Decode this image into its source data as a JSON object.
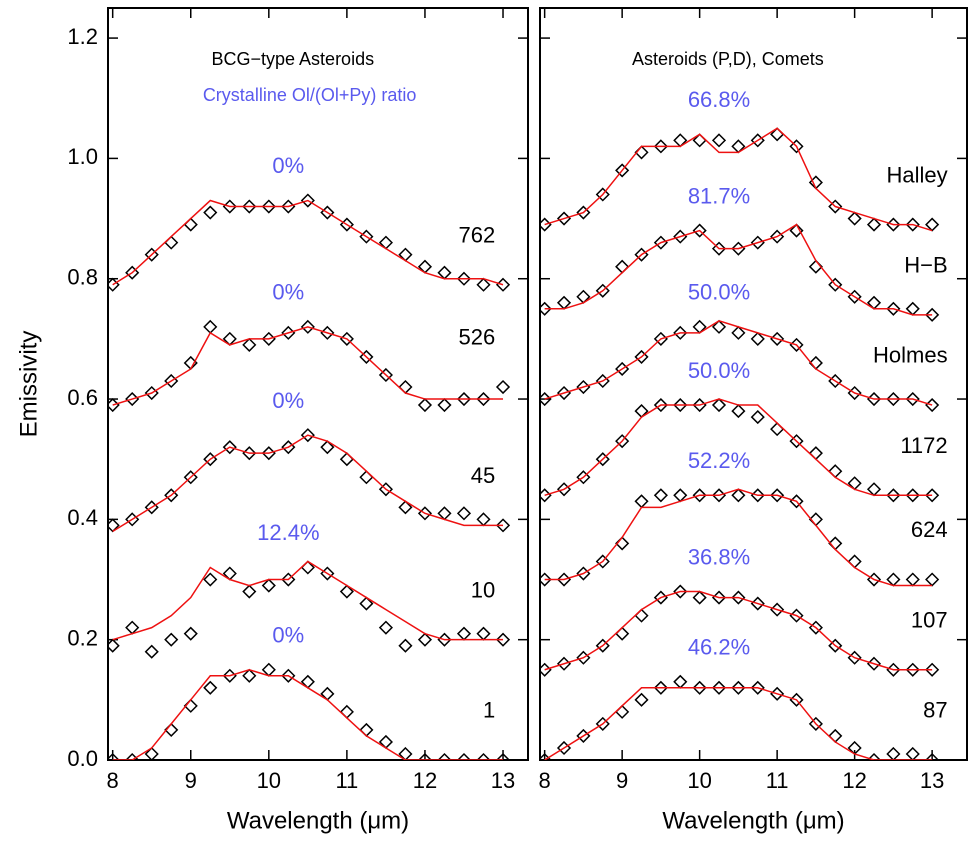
{
  "chart_data": [
    {
      "type": "spectra",
      "title": "BCG−type Asteroids",
      "subtitle": "Crystalline Ol/(Ol+Py) ratio",
      "x_label": "Wavelength (μm)",
      "y_label": "Emissivity",
      "xlim": [
        7.94,
        13.32
      ],
      "ylim": [
        0,
        1.25
      ],
      "xticks": [
        8,
        9,
        10,
        11,
        12,
        13
      ],
      "yticks": [
        {
          "value": 0,
          "label": "0.0"
        },
        {
          "value": 0.2,
          "label": "0.2"
        },
        {
          "value": 0.4,
          "label": "0.4"
        },
        {
          "value": 0.6,
          "label": "0.6"
        },
        {
          "value": 0.8,
          "label": "0.8"
        },
        {
          "value": 1,
          "label": "1.0"
        },
        {
          "value": 1.2,
          "label": "1.2"
        }
      ],
      "show_ytick_labels": true,
      "marker_color": "#000000",
      "model_color": "#ee1111",
      "label_color": "#5a5aee",
      "x": [
        8,
        8.25,
        8.5,
        8.75,
        9,
        9.25,
        9.5,
        9.75,
        10,
        10.25,
        10.5,
        10.75,
        11,
        11.25,
        11.5,
        11.75,
        12,
        12.25,
        12.5,
        12.75,
        13
      ],
      "series": [
        {
          "name": "762",
          "ratio": "0%",
          "observed": [
            0.79,
            0.81,
            0.84,
            0.86,
            0.89,
            0.91,
            0.92,
            0.92,
            0.92,
            0.92,
            0.93,
            0.91,
            0.89,
            0.87,
            0.86,
            0.84,
            0.82,
            0.81,
            0.8,
            0.79,
            0.79
          ],
          "model": [
            0.79,
            0.81,
            0.84,
            0.87,
            0.9,
            0.93,
            0.92,
            0.92,
            0.92,
            0.92,
            0.93,
            0.91,
            0.89,
            0.87,
            0.85,
            0.83,
            0.81,
            0.8,
            0.8,
            0.8,
            0.79
          ]
        },
        {
          "name": "526",
          "ratio": "0%",
          "observed": [
            0.59,
            0.6,
            0.61,
            0.63,
            0.66,
            0.72,
            0.7,
            0.69,
            0.7,
            0.71,
            0.72,
            0.71,
            0.7,
            0.67,
            0.64,
            0.62,
            0.59,
            0.59,
            0.6,
            0.6,
            0.62
          ],
          "model": [
            0.59,
            0.6,
            0.61,
            0.63,
            0.65,
            0.71,
            0.69,
            0.7,
            0.7,
            0.71,
            0.72,
            0.71,
            0.7,
            0.67,
            0.64,
            0.61,
            0.6,
            0.6,
            0.6,
            0.6,
            0.6
          ]
        },
        {
          "name": "45",
          "ratio": "0%",
          "observed": [
            0.39,
            0.4,
            0.42,
            0.44,
            0.47,
            0.5,
            0.52,
            0.51,
            0.51,
            0.52,
            0.54,
            0.52,
            0.5,
            0.47,
            0.45,
            0.42,
            0.41,
            0.41,
            0.41,
            0.4,
            0.39
          ],
          "model": [
            0.38,
            0.4,
            0.42,
            0.44,
            0.47,
            0.5,
            0.52,
            0.51,
            0.51,
            0.52,
            0.54,
            0.53,
            0.51,
            0.48,
            0.45,
            0.43,
            0.41,
            0.4,
            0.39,
            0.39,
            0.39
          ]
        },
        {
          "name": "10",
          "ratio": "12.4%",
          "observed": [
            0.19,
            0.22,
            0.18,
            0.2,
            0.21,
            0.3,
            0.31,
            0.28,
            0.29,
            0.3,
            0.32,
            0.31,
            0.28,
            0.26,
            0.22,
            0.19,
            0.2,
            0.2,
            0.21,
            0.21,
            0.2
          ],
          "model": [
            0.2,
            0.21,
            0.22,
            0.24,
            0.27,
            0.32,
            0.3,
            0.29,
            0.3,
            0.3,
            0.33,
            0.31,
            0.29,
            0.27,
            0.25,
            0.23,
            0.21,
            0.2,
            0.2,
            0.2,
            0.2
          ]
        },
        {
          "name": "1",
          "ratio": "0%",
          "observed": [
            0,
            0,
            0.01,
            0.05,
            0.09,
            0.12,
            0.14,
            0.14,
            0.15,
            0.14,
            0.13,
            0.11,
            0.08,
            0.05,
            0.03,
            0.01,
            0,
            0,
            0,
            0,
            0
          ],
          "model": [
            0,
            0,
            0.02,
            0.06,
            0.1,
            0.14,
            0.14,
            0.15,
            0.14,
            0.14,
            0.12,
            0.1,
            0.07,
            0.04,
            0.02,
            0,
            0,
            0,
            0,
            0,
            0
          ]
        }
      ]
    },
    {
      "type": "spectra",
      "title": "Asteroids (P,D), Comets",
      "x_label": "Wavelength (μm)",
      "xlim": [
        7.94,
        13.45
      ],
      "ylim": [
        0,
        1.25
      ],
      "xticks": [
        8,
        9,
        10,
        11,
        12,
        13
      ],
      "yticks": [
        0,
        0.2,
        0.4,
        0.6,
        0.8,
        1,
        1.2
      ],
      "show_ytick_labels": false,
      "marker_color": "#000000",
      "model_color": "#ee1111",
      "label_color": "#5a5aee",
      "x": [
        8,
        8.25,
        8.5,
        8.75,
        9,
        9.25,
        9.5,
        9.75,
        10,
        10.25,
        10.5,
        10.75,
        11,
        11.25,
        11.5,
        11.75,
        12,
        12.25,
        12.5,
        12.75,
        13
      ],
      "series": [
        {
          "name": "Halley",
          "ratio": "66.8%",
          "observed": [
            0.89,
            0.9,
            0.91,
            0.94,
            0.98,
            1.01,
            1.02,
            1.03,
            1.03,
            1.03,
            1.02,
            1.03,
            1.04,
            1.02,
            0.96,
            0.92,
            0.9,
            0.89,
            0.89,
            0.89,
            0.89
          ],
          "model": [
            0.89,
            0.9,
            0.91,
            0.94,
            0.98,
            1.02,
            1.02,
            1.02,
            1.04,
            1.01,
            1.01,
            1.03,
            1.05,
            1.02,
            0.95,
            0.92,
            0.91,
            0.9,
            0.89,
            0.89,
            0.88
          ]
        },
        {
          "name": "H−B",
          "ratio": "81.7%",
          "observed": [
            0.75,
            0.76,
            0.77,
            0.78,
            0.82,
            0.84,
            0.86,
            0.87,
            0.88,
            0.85,
            0.85,
            0.86,
            0.87,
            0.88,
            0.82,
            0.79,
            0.77,
            0.76,
            0.75,
            0.75,
            0.74
          ],
          "model": [
            0.75,
            0.75,
            0.76,
            0.78,
            0.81,
            0.84,
            0.86,
            0.87,
            0.88,
            0.85,
            0.85,
            0.86,
            0.87,
            0.89,
            0.83,
            0.79,
            0.77,
            0.75,
            0.75,
            0.74,
            0.74
          ]
        },
        {
          "name": "Holmes",
          "ratio": "50.0%",
          "observed": [
            0.6,
            0.61,
            0.62,
            0.63,
            0.65,
            0.67,
            0.7,
            0.71,
            0.72,
            0.72,
            0.71,
            0.7,
            0.7,
            0.69,
            0.66,
            0.63,
            0.61,
            0.6,
            0.6,
            0.6,
            0.59
          ],
          "model": [
            0.6,
            0.61,
            0.62,
            0.63,
            0.65,
            0.67,
            0.7,
            0.71,
            0.71,
            0.73,
            0.72,
            0.71,
            0.7,
            0.69,
            0.65,
            0.63,
            0.61,
            0.6,
            0.6,
            0.6,
            0.59
          ]
        },
        {
          "name": "1172",
          "ratio": "50.0%",
          "observed": [
            0.44,
            0.45,
            0.47,
            0.5,
            0.53,
            0.58,
            0.59,
            0.59,
            0.59,
            0.59,
            0.58,
            0.57,
            0.55,
            0.53,
            0.51,
            0.48,
            0.46,
            0.45,
            0.44,
            0.44,
            0.44
          ],
          "model": [
            0.44,
            0.45,
            0.47,
            0.5,
            0.53,
            0.57,
            0.59,
            0.59,
            0.59,
            0.6,
            0.59,
            0.59,
            0.56,
            0.53,
            0.5,
            0.47,
            0.45,
            0.44,
            0.44,
            0.44,
            0.44
          ]
        },
        {
          "name": "624",
          "ratio": "52.2%",
          "observed": [
            0.3,
            0.3,
            0.31,
            0.33,
            0.36,
            0.43,
            0.44,
            0.44,
            0.44,
            0.44,
            0.44,
            0.44,
            0.44,
            0.43,
            0.4,
            0.36,
            0.33,
            0.3,
            0.3,
            0.3,
            0.3
          ],
          "model": [
            0.3,
            0.3,
            0.31,
            0.33,
            0.37,
            0.42,
            0.42,
            0.43,
            0.44,
            0.44,
            0.45,
            0.44,
            0.44,
            0.43,
            0.39,
            0.35,
            0.32,
            0.3,
            0.29,
            0.29,
            0.29
          ]
        },
        {
          "name": "107",
          "ratio": "36.8%",
          "observed": [
            0.15,
            0.16,
            0.17,
            0.19,
            0.21,
            0.24,
            0.27,
            0.28,
            0.27,
            0.27,
            0.27,
            0.26,
            0.25,
            0.24,
            0.22,
            0.19,
            0.17,
            0.16,
            0.15,
            0.15,
            0.15
          ],
          "model": [
            0.15,
            0.16,
            0.17,
            0.19,
            0.22,
            0.25,
            0.27,
            0.28,
            0.28,
            0.27,
            0.27,
            0.26,
            0.25,
            0.24,
            0.22,
            0.19,
            0.17,
            0.16,
            0.15,
            0.15,
            0.15
          ]
        },
        {
          "name": "87",
          "ratio": "46.2%",
          "observed": [
            0,
            0.02,
            0.04,
            0.06,
            0.08,
            0.1,
            0.12,
            0.13,
            0.12,
            0.12,
            0.12,
            0.12,
            0.11,
            0.1,
            0.06,
            0.04,
            0.02,
            0,
            0.01,
            0.01,
            0
          ],
          "model": [
            0,
            0.02,
            0.04,
            0.06,
            0.09,
            0.12,
            0.12,
            0.12,
            0.12,
            0.12,
            0.12,
            0.12,
            0.11,
            0.1,
            0.06,
            0.03,
            0.01,
            0,
            0,
            0,
            0
          ]
        }
      ]
    }
  ]
}
